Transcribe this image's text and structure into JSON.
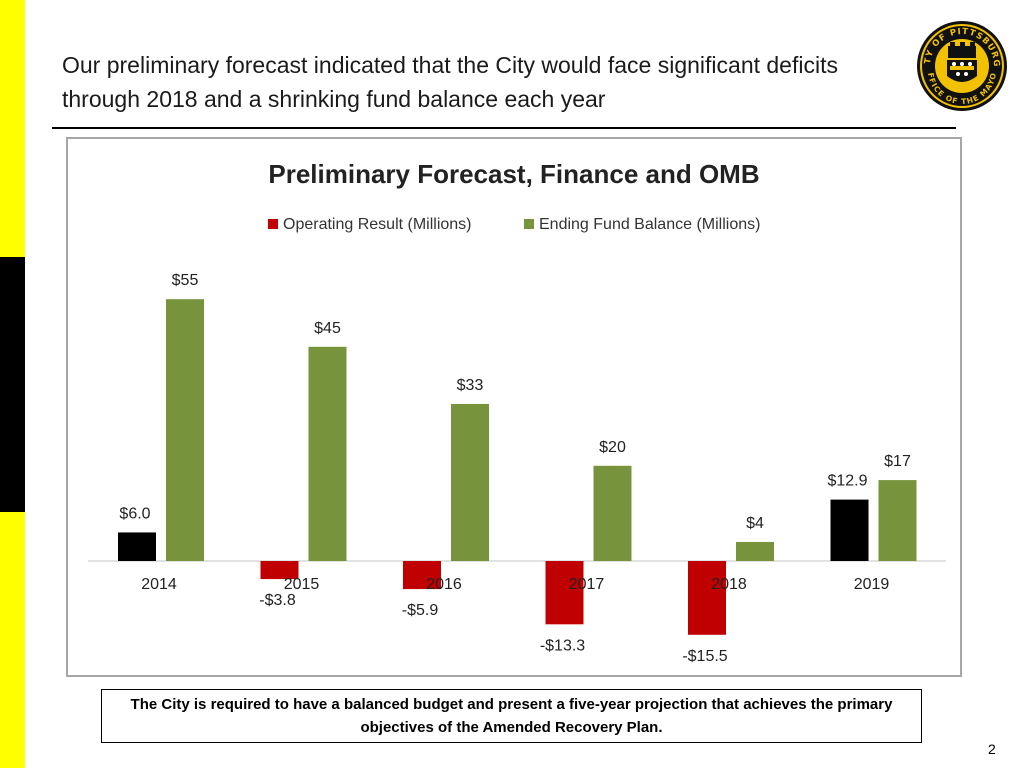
{
  "slide": {
    "title": "Our preliminary forecast indicated that the City would face significant deficits through 2018 and a shrinking fund balance each year",
    "note": "The City is required to have a balanced budget and present a five-year projection that achieves the primary objectives of the Amended Recovery Plan.",
    "page_number": "2",
    "seal_top_text": "CITY OF PITTSBURGH",
    "seal_bottom_text": "OFFICE OF THE MAYOR"
  },
  "colors": {
    "side_bar": "#ffff00",
    "side_bar_dark": "#000000",
    "operating_negative": "#c00000",
    "operating_positive": "#000000",
    "fund_balance": "#77933c"
  },
  "chart_data": {
    "type": "bar",
    "title": "Preliminary Forecast, Finance and OMB",
    "categories": [
      "2014",
      "2015",
      "2016",
      "2017",
      "2018",
      "2019"
    ],
    "series": [
      {
        "name": "Operating Result (Millions)",
        "values": [
          6.0,
          -3.8,
          -5.9,
          -13.3,
          -15.5,
          12.9
        ],
        "labels": [
          "$6.0",
          "-$3.8",
          "-$5.9",
          "-$13.3",
          "-$15.5",
          "$12.9"
        ]
      },
      {
        "name": "Ending Fund Balance (Millions)",
        "values": [
          55,
          45,
          33,
          20,
          4,
          17
        ],
        "labels": [
          "$55",
          "$45",
          "$33",
          "$20",
          "$4",
          "$17"
        ]
      }
    ],
    "legend_position": "top",
    "grid": false,
    "ylim": [
      -16,
      55
    ]
  }
}
